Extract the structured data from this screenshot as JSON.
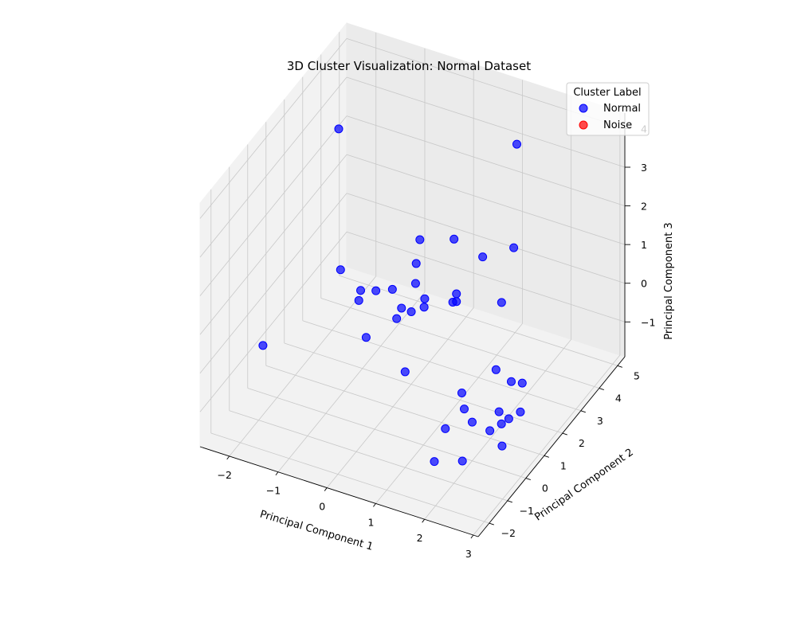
{
  "chart_data": {
    "type": "scatter",
    "projection": "3d",
    "title": "3D Cluster Visualization: Normal Dataset",
    "xlabel": "Principal Component 1",
    "ylabel": "Principal Component 2",
    "zlabel": "Principal Component 3",
    "xticks": [
      "−2",
      "−1",
      "0",
      "1",
      "2",
      "3"
    ],
    "yticks": [
      "−2",
      "−1",
      "0",
      "1",
      "2",
      "3",
      "4",
      "5"
    ],
    "zticks": [
      "−1",
      "0",
      "1",
      "2",
      "3",
      "4"
    ],
    "xlim": [
      -2.6,
      3.1
    ],
    "ylim": [
      -2.6,
      5.4
    ],
    "zlim": [
      -1.9,
      4.4
    ],
    "grid": true,
    "legend": {
      "title": "Cluster Label",
      "placement": "top-right",
      "entries": [
        {
          "label": "Normal",
          "color": "#0000ff"
        },
        {
          "label": "Noise",
          "color": "#ff0000"
        }
      ]
    },
    "series": [
      {
        "name": "Normal",
        "color": "#0000ff",
        "points": [
          {
            "x": -2.2,
            "y": 3.9,
            "z": 2.7
          },
          {
            "x": -2.1,
            "y": -0.5,
            "z": -0.3
          },
          {
            "x": -2.2,
            "y": 4.0,
            "z": -1.0
          },
          {
            "x": -1.6,
            "y": 3.4,
            "z": -1.2
          },
          {
            "x": -1.6,
            "y": 3.5,
            "z": -1.0
          },
          {
            "x": -1.4,
            "y": 3.8,
            "z": -1.1
          },
          {
            "x": -1.1,
            "y": 3.9,
            "z": -1.0
          },
          {
            "x": -1.3,
            "y": 3.0,
            "z": -1.8
          },
          {
            "x": -0.9,
            "y": 3.6,
            "z": -1.5
          },
          {
            "x": -0.6,
            "y": 3.6,
            "z": -1.2
          },
          {
            "x": -0.3,
            "y": 3.5,
            "z": -0.9
          },
          {
            "x": -0.7,
            "y": 4.1,
            "z": -0.8
          },
          {
            "x": -0.8,
            "y": 4.4,
            "z": -0.5
          },
          {
            "x": -0.4,
            "y": 3.8,
            "z": -0.9
          },
          {
            "x": 0.1,
            "y": 4.0,
            "z": -0.9
          },
          {
            "x": 0.1,
            "y": 4.2,
            "z": -0.8
          },
          {
            "x": 0.1,
            "y": 4.2,
            "z": -1.0
          },
          {
            "x": -0.8,
            "y": 4.6,
            "z": 0.0
          },
          {
            "x": -0.1,
            "y": 4.6,
            "z": 0.3
          },
          {
            "x": 0.6,
            "y": 4.3,
            "z": 0.3
          },
          {
            "x": 1.1,
            "y": 4.0,
            "z": -0.5
          },
          {
            "x": -0.5,
            "y": 2.8,
            "z": -0.6
          },
          {
            "x": 1.3,
            "y": 4.3,
            "z": 3.5
          },
          {
            "x": 1.8,
            "y": 2.8,
            "z": 1.9
          },
          {
            "x": 0.4,
            "y": 0.6,
            "z": -0.6
          },
          {
            "x": 1.6,
            "y": 0.5,
            "z": -0.6
          },
          {
            "x": 1.8,
            "y": 0.1,
            "z": -0.7
          },
          {
            "x": 2.0,
            "y": 0.0,
            "z": -0.9
          },
          {
            "x": 2.0,
            "y": 1.3,
            "z": -0.3
          },
          {
            "x": 2.4,
            "y": 0.4,
            "z": -0.7
          },
          {
            "x": 1.6,
            "y": -0.4,
            "z": -1.0
          },
          {
            "x": 1.6,
            "y": -1.0,
            "z": -1.5
          },
          {
            "x": 2.1,
            "y": -0.8,
            "z": -1.4
          },
          {
            "x": 2.4,
            "y": -0.1,
            "z": -0.9
          },
          {
            "x": 2.6,
            "y": 0.0,
            "z": -0.7
          },
          {
            "x": 2.6,
            "y": 0.4,
            "z": -0.8
          },
          {
            "x": 2.8,
            "y": -0.5,
            "z": -0.9
          },
          {
            "x": 2.8,
            "y": 0.5,
            "z": -0.6
          },
          {
            "x": 2.5,
            "y": 1.4,
            "z": -0.5
          },
          {
            "x": 2.2,
            "y": 1.6,
            "z": -0.7
          }
        ]
      },
      {
        "name": "Noise",
        "color": "#ff0000",
        "points": []
      }
    ]
  }
}
